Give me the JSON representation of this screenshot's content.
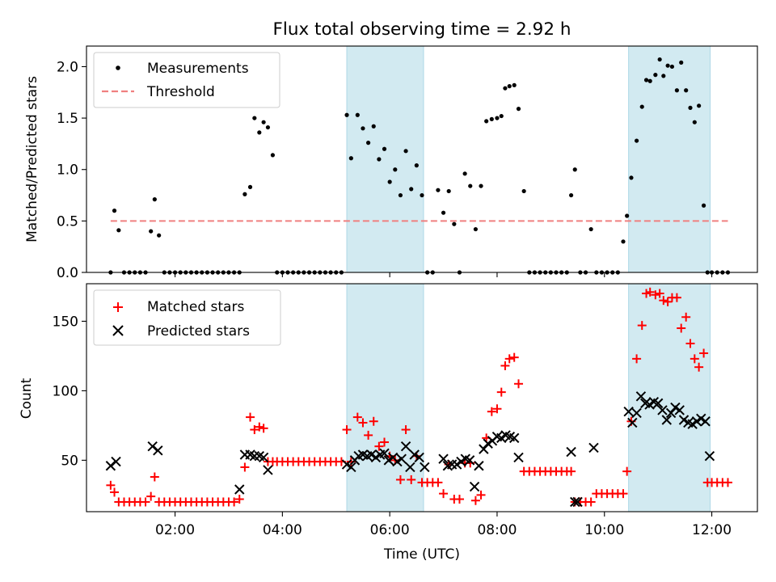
{
  "chart_data": {
    "title": "Flux total observing time = 2.92 h",
    "xlabel": "Time (UTC)",
    "x_ticks": [
      "02:00",
      "04:00",
      "06:00",
      "08:00",
      "10:00",
      "12:00"
    ],
    "x_tick_hours": [
      2,
      4,
      6,
      8,
      10,
      12
    ],
    "xlim_hours": [
      0.35,
      12.85
    ],
    "highlight_intervals_hours": [
      [
        5.2,
        6.63
      ],
      [
        10.45,
        11.97
      ]
    ],
    "highlight_color": "#add8e6",
    "panels": [
      {
        "type": "scatter",
        "ylabel": "Matched/Predicted stars",
        "ylim": [
          0,
          2.2
        ],
        "y_ticks": [
          "0.0",
          "0.5",
          "1.0",
          "1.5",
          "2.0"
        ],
        "y_tick_values": [
          0,
          0.5,
          1.0,
          1.5,
          2.0
        ],
        "legend": {
          "position": "upper-left",
          "entries": [
            {
              "label": "Measurements",
              "marker": "dot",
              "color": "#000000"
            },
            {
              "label": "Threshold",
              "marker": "dashed-line",
              "color": "#f08080"
            }
          ]
        },
        "threshold": {
          "value": 0.5,
          "x_range": [
            0.8,
            12.3
          ]
        },
        "series": [
          {
            "name": "Measurements",
            "color": "#000000",
            "x": [
              0.8,
              0.87,
              0.95,
              1.05,
              1.15,
              1.25,
              1.35,
              1.45,
              1.55,
              1.62,
              1.7,
              1.8,
              1.9,
              2.0,
              2.1,
              2.2,
              2.3,
              2.4,
              2.5,
              2.6,
              2.7,
              2.8,
              2.9,
              3.0,
              3.1,
              3.2,
              3.3,
              3.4,
              3.48,
              3.57,
              3.65,
              3.73,
              3.82,
              3.9,
              4.0,
              4.1,
              4.2,
              4.3,
              4.4,
              4.5,
              4.6,
              4.7,
              4.8,
              4.9,
              5.0,
              5.1,
              5.2,
              5.28,
              5.4,
              5.5,
              5.6,
              5.7,
              5.8,
              5.9,
              6.0,
              6.1,
              6.2,
              6.3,
              6.4,
              6.5,
              6.6,
              6.7,
              6.8,
              6.9,
              7.0,
              7.1,
              7.2,
              7.3,
              7.4,
              7.5,
              7.6,
              7.7,
              7.8,
              7.9,
              8.0,
              8.08,
              8.15,
              8.23,
              8.32,
              8.4,
              8.5,
              8.6,
              8.7,
              8.8,
              8.9,
              9.0,
              9.1,
              9.2,
              9.3,
              9.38,
              9.45,
              9.55,
              9.65,
              9.75,
              9.85,
              9.95,
              10.05,
              10.15,
              10.25,
              10.35,
              10.42,
              10.5,
              10.6,
              10.7,
              10.78,
              10.85,
              10.95,
              11.03,
              11.1,
              11.18,
              11.26,
              11.35,
              11.43,
              11.52,
              11.6,
              11.68,
              11.76,
              11.85,
              11.92,
              12.0,
              12.1,
              12.2,
              12.3
            ],
            "y": [
              0.0,
              0.6,
              0.41,
              0.0,
              0.0,
              0.0,
              0.0,
              0.0,
              0.4,
              0.71,
              0.36,
              0.0,
              0.0,
              0.0,
              0.0,
              0.0,
              0.0,
              0.0,
              0.0,
              0.0,
              0.0,
              0.0,
              0.0,
              0.0,
              0.0,
              0.0,
              0.76,
              0.83,
              1.5,
              1.36,
              1.46,
              1.41,
              1.14,
              0.0,
              0.0,
              0.0,
              0.0,
              0.0,
              0.0,
              0.0,
              0.0,
              0.0,
              0.0,
              0.0,
              0.0,
              0.0,
              1.53,
              1.11,
              1.53,
              1.4,
              1.26,
              1.42,
              1.1,
              1.2,
              0.88,
              1.0,
              0.75,
              1.18,
              0.81,
              1.04,
              0.75,
              0.0,
              0.0,
              0.8,
              0.58,
              0.79,
              0.47,
              0.0,
              0.96,
              0.84,
              0.42,
              0.84,
              1.47,
              1.49,
              1.5,
              1.52,
              1.79,
              1.81,
              1.82,
              1.59,
              0.79,
              0.0,
              0.0,
              0.0,
              0.0,
              0.0,
              0.0,
              0.0,
              0.0,
              0.75,
              1.0,
              0.0,
              0.0,
              0.42,
              0.0,
              0.0,
              0.0,
              0.0,
              0.0,
              0.3,
              0.55,
              0.92,
              1.28,
              1.61,
              1.87,
              1.86,
              1.92,
              2.07,
              1.91,
              2.01,
              2.0,
              1.77,
              2.04,
              1.77,
              1.6,
              1.46,
              1.62,
              0.65,
              0.0,
              0.0,
              0.0,
              0.0,
              0.0
            ]
          }
        ]
      },
      {
        "type": "scatter",
        "ylabel": "Count",
        "ylim": [
          13,
          177
        ],
        "y_ticks": [
          "50",
          "100",
          "150"
        ],
        "y_tick_values": [
          50,
          100,
          150
        ],
        "legend": {
          "position": "upper-left",
          "entries": [
            {
              "label": "Matched stars",
              "marker": "plus",
              "color": "#ff0000"
            },
            {
              "label": "Predicted stars",
              "marker": "x",
              "color": "#000000"
            }
          ]
        },
        "series": [
          {
            "name": "Matched stars",
            "marker": "plus",
            "color": "#ff0000",
            "x": [
              0.8,
              0.87,
              0.95,
              1.05,
              1.15,
              1.25,
              1.35,
              1.45,
              1.55,
              1.62,
              1.7,
              1.8,
              1.9,
              2.0,
              2.1,
              2.2,
              2.3,
              2.4,
              2.5,
              2.6,
              2.7,
              2.8,
              2.9,
              3.0,
              3.1,
              3.2,
              3.3,
              3.4,
              3.48,
              3.57,
              3.65,
              3.73,
              3.82,
              3.9,
              4.0,
              4.1,
              4.2,
              4.3,
              4.4,
              4.5,
              4.6,
              4.7,
              4.8,
              4.9,
              5.0,
              5.1,
              5.2,
              5.28,
              5.4,
              5.5,
              5.6,
              5.7,
              5.8,
              5.9,
              6.0,
              6.1,
              6.2,
              6.3,
              6.4,
              6.5,
              6.6,
              6.7,
              6.8,
              6.9,
              7.0,
              7.1,
              7.2,
              7.3,
              7.4,
              7.5,
              7.6,
              7.7,
              7.8,
              7.9,
              8.0,
              8.08,
              8.15,
              8.23,
              8.32,
              8.4,
              8.5,
              8.6,
              8.7,
              8.8,
              8.9,
              9.0,
              9.1,
              9.2,
              9.3,
              9.38,
              9.45,
              9.55,
              9.65,
              9.75,
              9.85,
              9.95,
              10.05,
              10.15,
              10.25,
              10.35,
              10.42,
              10.5,
              10.6,
              10.7,
              10.78,
              10.85,
              10.95,
              11.03,
              11.1,
              11.18,
              11.26,
              11.35,
              11.43,
              11.52,
              11.6,
              11.68,
              11.76,
              11.85,
              11.92,
              12.0,
              12.1,
              12.2,
              12.3
            ],
            "y": [
              32,
              27,
              20,
              20,
              20,
              20,
              20,
              20,
              24,
              38,
              20,
              20,
              20,
              20,
              20,
              20,
              20,
              20,
              20,
              20,
              20,
              20,
              20,
              20,
              20,
              22,
              45,
              81,
              72,
              74,
              73,
              49,
              49,
              49,
              49,
              49,
              49,
              49,
              49,
              49,
              49,
              49,
              49,
              49,
              49,
              49,
              72,
              49,
              81,
              77,
              68,
              78,
              60,
              63,
              53,
              50,
              36,
              72,
              36,
              53,
              34,
              34,
              34,
              34,
              26,
              47,
              22,
              22,
              48,
              48,
              21,
              25,
              66,
              85,
              87,
              99,
              118,
              123,
              124,
              105,
              42,
              42,
              42,
              42,
              42,
              42,
              42,
              42,
              42,
              42,
              20,
              20,
              20,
              20,
              26,
              26,
              26,
              26,
              26,
              26,
              42,
              78,
              123,
              147,
              170,
              171,
              169,
              170,
              165,
              164,
              167,
              167,
              145,
              153,
              134,
              123,
              117,
              127,
              34,
              34,
              34,
              34,
              34
            ]
          },
          {
            "name": "Predicted stars",
            "marker": "x",
            "color": "#000000",
            "x": [
              0.8,
              0.9,
              1.58,
              1.68,
              3.2,
              3.3,
              3.4,
              3.48,
              3.57,
              3.65,
              3.73,
              5.2,
              5.28,
              5.35,
              5.42,
              5.5,
              5.58,
              5.66,
              5.74,
              5.82,
              5.9,
              5.98,
              6.06,
              6.14,
              6.22,
              6.3,
              6.38,
              6.46,
              6.55,
              6.65,
              7.0,
              7.08,
              7.16,
              7.25,
              7.33,
              7.41,
              7.49,
              7.58,
              7.66,
              7.75,
              7.83,
              7.91,
              8.0,
              8.08,
              8.16,
              8.24,
              8.32,
              8.4,
              9.38,
              9.45,
              9.5,
              9.8,
              10.45,
              10.52,
              10.6,
              10.68,
              10.76,
              10.84,
              10.92,
              11.0,
              11.08,
              11.16,
              11.24,
              11.32,
              11.4,
              11.48,
              11.56,
              11.64,
              11.72,
              11.8,
              11.88,
              11.96
            ],
            "y": [
              46,
              49,
              60,
              57,
              29,
              54,
              54,
              53,
              53,
              52,
              43,
              47,
              45,
              50,
              53,
              54,
              53,
              54,
              52,
              54,
              55,
              50,
              52,
              49,
              51,
              60,
              45,
              54,
              52,
              45,
              51,
              46,
              47,
              47,
              49,
              51,
              50,
              31,
              46,
              58,
              62,
              64,
              67,
              66,
              68,
              67,
              66,
              52,
              56,
              20,
              20,
              59,
              85,
              77,
              84,
              96,
              91,
              90,
              92,
              91,
              86,
              79,
              84,
              88,
              86,
              79,
              77,
              76,
              78,
              80,
              78,
              53
            ]
          }
        ]
      }
    ]
  }
}
